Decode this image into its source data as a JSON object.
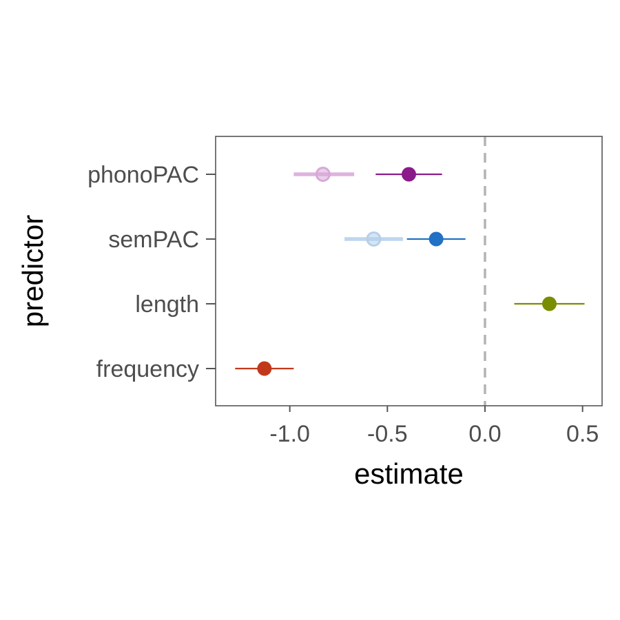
{
  "chart_data": {
    "type": "forest",
    "xlabel": "estimate",
    "ylabel": "predictor",
    "xlim": [
      -1.38,
      0.6
    ],
    "x_ticks": [
      -1.0,
      -0.5,
      0.0,
      0.5
    ],
    "x_tick_labels": [
      "-1.0",
      "-0.5",
      "0.0",
      "0.5"
    ],
    "reference_line": 0.0,
    "grid": false,
    "categories": [
      "phonoPAC",
      "semPAC",
      "length",
      "frequency"
    ],
    "points": [
      {
        "predictor": "phonoPAC",
        "estimate": -0.39,
        "lower": -0.56,
        "upper": -0.22,
        "color": "#8b1a8b",
        "faded": false
      },
      {
        "predictor": "phonoPAC",
        "estimate": -0.83,
        "lower": -0.98,
        "upper": -0.67,
        "color": "#d8a8d8",
        "faded": true
      },
      {
        "predictor": "semPAC",
        "estimate": -0.25,
        "lower": -0.4,
        "upper": -0.1,
        "color": "#2171c4",
        "faded": false
      },
      {
        "predictor": "semPAC",
        "estimate": -0.57,
        "lower": -0.72,
        "upper": -0.42,
        "color": "#b4d0ea",
        "faded": true
      },
      {
        "predictor": "length",
        "estimate": 0.33,
        "lower": 0.15,
        "upper": 0.51,
        "color": "#7a8c00",
        "faded": false
      },
      {
        "predictor": "frequency",
        "estimate": -1.13,
        "lower": -1.28,
        "upper": -0.98,
        "color": "#c2381a",
        "faded": false
      }
    ]
  }
}
